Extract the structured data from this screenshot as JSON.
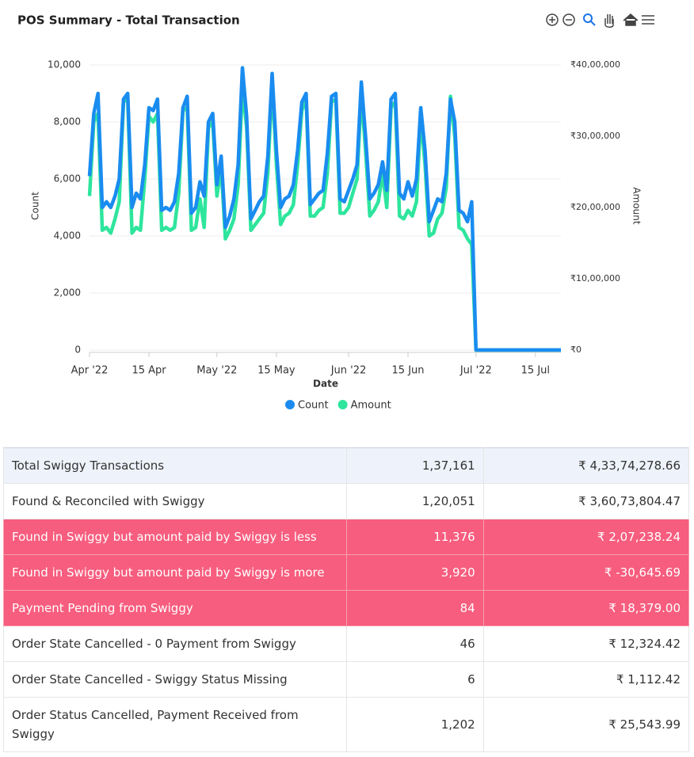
{
  "chart_data": {
    "type": "line",
    "title": "POS Summary - Total Transaction",
    "xlabel": "Date",
    "ylabel": "Count",
    "y2label": "Amount",
    "x": [
      "2022-04-01",
      "2022-04-02",
      "2022-04-03",
      "2022-04-04",
      "2022-04-05",
      "2022-04-06",
      "2022-04-07",
      "2022-04-08",
      "2022-04-09",
      "2022-04-10",
      "2022-04-11",
      "2022-04-12",
      "2022-04-13",
      "2022-04-14",
      "2022-04-15",
      "2022-04-16",
      "2022-04-17",
      "2022-04-18",
      "2022-04-19",
      "2022-04-20",
      "2022-04-21",
      "2022-04-22",
      "2022-04-23",
      "2022-04-24",
      "2022-04-25",
      "2022-04-26",
      "2022-04-27",
      "2022-04-28",
      "2022-04-29",
      "2022-04-30",
      "2022-05-01",
      "2022-05-02",
      "2022-05-03",
      "2022-05-04",
      "2022-05-05",
      "2022-05-06",
      "2022-05-07",
      "2022-05-08",
      "2022-05-09",
      "2022-05-10",
      "2022-05-11",
      "2022-05-12",
      "2022-05-13",
      "2022-05-14",
      "2022-05-15",
      "2022-05-16",
      "2022-05-17",
      "2022-05-18",
      "2022-05-19",
      "2022-05-20",
      "2022-05-21",
      "2022-05-22",
      "2022-05-23",
      "2022-05-24",
      "2022-05-25",
      "2022-05-26",
      "2022-05-27",
      "2022-05-28",
      "2022-05-29",
      "2022-05-30",
      "2022-05-31",
      "2022-06-01",
      "2022-06-02",
      "2022-06-03",
      "2022-06-04",
      "2022-06-05",
      "2022-06-06",
      "2022-06-07",
      "2022-06-08",
      "2022-06-09",
      "2022-06-10",
      "2022-06-11",
      "2022-06-12",
      "2022-06-13",
      "2022-06-14",
      "2022-06-15",
      "2022-06-16",
      "2022-06-17",
      "2022-06-18",
      "2022-06-19",
      "2022-06-20",
      "2022-06-21",
      "2022-06-22",
      "2022-06-23",
      "2022-06-24",
      "2022-06-25",
      "2022-06-26",
      "2022-06-27",
      "2022-06-28",
      "2022-06-29",
      "2022-06-30",
      "2022-07-01",
      "2022-07-02",
      "2022-07-03",
      "2022-07-04",
      "2022-07-05",
      "2022-07-06",
      "2022-07-07",
      "2022-07-08",
      "2022-07-09",
      "2022-07-10",
      "2022-07-11",
      "2022-07-12",
      "2022-07-13",
      "2022-07-14",
      "2022-07-15",
      "2022-07-16",
      "2022-07-17",
      "2022-07-18",
      "2022-07-19",
      "2022-07-20",
      "2022-07-21"
    ],
    "series": [
      {
        "name": "Amount",
        "color": "#2ee59d",
        "axis": "y2",
        "values": [
          2160000,
          3200000,
          3320000,
          1680000,
          1720000,
          1640000,
          1840000,
          2080000,
          3480000,
          3520000,
          1640000,
          1720000,
          1680000,
          2400000,
          3280000,
          3200000,
          3320000,
          1680000,
          1720000,
          1680000,
          1720000,
          2200000,
          3360000,
          3400000,
          1680000,
          1720000,
          2120000,
          1720000,
          3120000,
          3200000,
          2160000,
          2560000,
          1560000,
          1680000,
          1840000,
          2320000,
          3680000,
          3120000,
          1680000,
          1760000,
          1840000,
          1920000,
          2480000,
          3760000,
          2600000,
          1760000,
          1880000,
          1920000,
          2040000,
          2600000,
          3360000,
          3520000,
          1880000,
          1880000,
          1960000,
          2000000,
          2480000,
          3480000,
          3520000,
          1920000,
          1920000,
          2000000,
          2200000,
          2400000,
          3600000,
          2800000,
          1880000,
          1960000,
          2080000,
          2480000,
          2000000,
          3400000,
          3480000,
          1880000,
          1840000,
          1960000,
          1880000,
          2080000,
          3280000,
          2600000,
          1600000,
          1640000,
          1840000,
          1920000,
          2280000,
          3560000,
          3000000,
          1720000,
          1680000,
          1560000,
          1480000,
          0,
          0,
          0,
          0,
          0,
          0,
          0,
          0,
          0,
          0,
          0,
          0,
          0,
          0,
          0,
          0,
          0,
          0,
          0,
          0,
          0
        ]
      },
      {
        "name": "Count",
        "color": "#1a8cf0",
        "values": [
          6100,
          8300,
          9000,
          5000,
          5200,
          5000,
          5400,
          6000,
          8800,
          9000,
          5000,
          5500,
          5300,
          6500,
          8500,
          8400,
          8800,
          4900,
          5000,
          4900,
          5200,
          6200,
          8500,
          8900,
          4800,
          5000,
          5900,
          5400,
          8000,
          8300,
          5800,
          6800,
          4300,
          4700,
          5300,
          6500,
          9900,
          8200,
          4600,
          4900,
          5200,
          5400,
          6800,
          9700,
          7000,
          5000,
          5300,
          5400,
          5800,
          7000,
          8700,
          9000,
          5100,
          5300,
          5500,
          5600,
          6900,
          8900,
          9000,
          5300,
          5200,
          5600,
          6000,
          6500,
          9400,
          7500,
          5300,
          5500,
          5800,
          6600,
          5600,
          8800,
          9000,
          5500,
          5300,
          5900,
          5400,
          6000,
          8500,
          7000,
          4500,
          4900,
          5300,
          5200,
          6200,
          8800,
          8000,
          4900,
          4800,
          4500,
          5200,
          0,
          0,
          0,
          0,
          0,
          0,
          0,
          0,
          0,
          0,
          0,
          0,
          0,
          0,
          0,
          0,
          0,
          0,
          0,
          0,
          0
        ]
      }
    ],
    "xlim": [
      "2022-04-01",
      "2022-07-21"
    ],
    "xticks": [
      {
        "value": "2022-04-01",
        "label": "Apr '22"
      },
      {
        "value": "2022-04-15",
        "label": "15 Apr"
      },
      {
        "value": "2022-05-01",
        "label": "May '22"
      },
      {
        "value": "2022-05-15",
        "label": "15 May"
      },
      {
        "value": "2022-06-01",
        "label": "Jun '22"
      },
      {
        "value": "2022-06-15",
        "label": "15 Jun"
      },
      {
        "value": "2022-07-01",
        "label": "Jul '22"
      },
      {
        "value": "2022-07-15",
        "label": "15 Jul"
      }
    ],
    "ylim": [
      0,
      10000
    ],
    "yticks": [
      0,
      {
        "value": 2000,
        "label": "2,000"
      },
      {
        "value": 4000,
        "label": "4,000"
      },
      {
        "value": 6000,
        "label": "6,000"
      },
      {
        "value": 8000,
        "label": "8,000"
      },
      {
        "value": 10000,
        "label": "10,000"
      }
    ],
    "y2lim": [
      0,
      4000000
    ],
    "y2ticks": [
      {
        "value": 0,
        "label": "₹0"
      },
      {
        "value": 1000000,
        "label": "₹10,00,000"
      },
      {
        "value": 2000000,
        "label": "₹20,00,000"
      },
      {
        "value": 3000000,
        "label": "₹30,00,000"
      },
      {
        "value": 4000000,
        "label": "₹40,00,000"
      }
    ],
    "grid": true,
    "legend": "bottom"
  },
  "table": {
    "rows": [
      [
        "Total Swiggy Transactions",
        "1,37,161",
        "₹ 4,33,74,278.66"
      ],
      [
        "Found & Reconciled with Swiggy",
        "1,20,051",
        "₹ 3,60,73,804.47"
      ],
      [
        "Found in Swiggy but amount paid by Swiggy is less",
        "11,376",
        "₹ 2,07,238.24"
      ],
      [
        "Found in Swiggy but amount paid by Swiggy is more",
        "3,920",
        "₹ -30,645.69"
      ],
      [
        "Payment Pending from Swiggy",
        "84",
        "₹ 18,379.00"
      ],
      [
        "Order State Cancelled - 0 Payment from Swiggy",
        "46",
        "₹ 12,324.42"
      ],
      [
        "Order State Cancelled - Swiggy Status Missing",
        "6",
        "₹ 1,112.42"
      ],
      [
        "Order Status Cancelled, Payment Received from Swiggy",
        "1,202",
        "₹ 25,543.99"
      ]
    ],
    "highlighted_rows": [
      2,
      3,
      4
    ]
  }
}
